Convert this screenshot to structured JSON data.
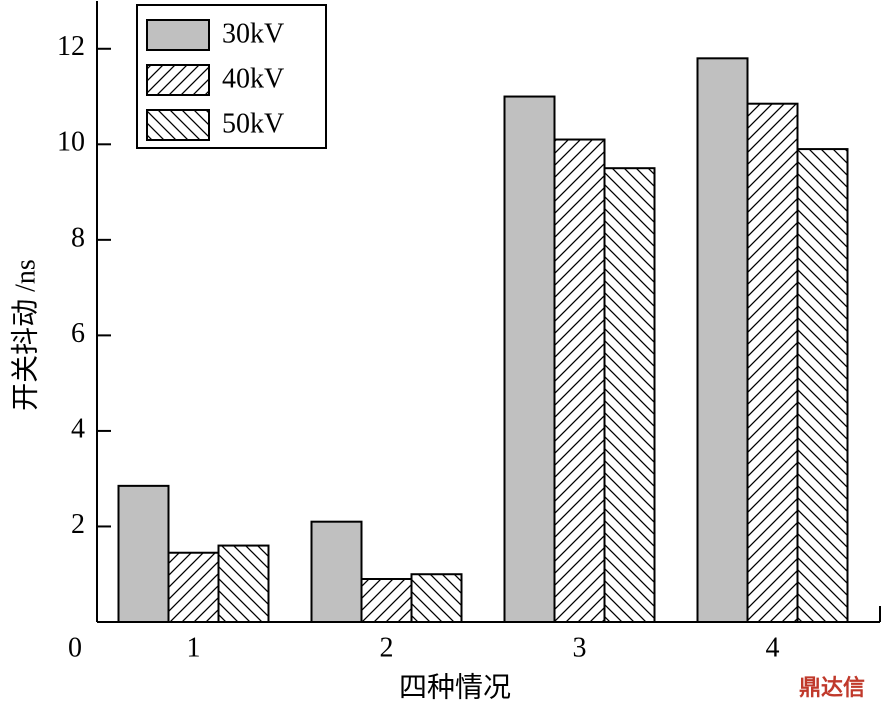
{
  "chart_data": {
    "type": "bar",
    "categories": [
      "1",
      "2",
      "3",
      "4"
    ],
    "x_label": "四种情况",
    "y_label": "开关抖动 /ns",
    "series": [
      {
        "name": "30kV",
        "color": "#c0c0c0",
        "hatch": null,
        "values": [
          2.85,
          2.1,
          11.0,
          11.8
        ]
      },
      {
        "name": "40kV",
        "color": "#ffffff",
        "hatch": "/",
        "values": [
          1.45,
          0.9,
          10.1,
          10.85
        ]
      },
      {
        "name": "50kV",
        "color": "#ffffff",
        "hatch": "\\",
        "values": [
          1.6,
          1.0,
          9.5,
          9.9
        ]
      }
    ],
    "ylim": [
      0,
      13
    ],
    "yticks": [
      0,
      2,
      4,
      6,
      8,
      10,
      12
    ],
    "legend": "upper-left",
    "watermark": "鼎达信"
  }
}
